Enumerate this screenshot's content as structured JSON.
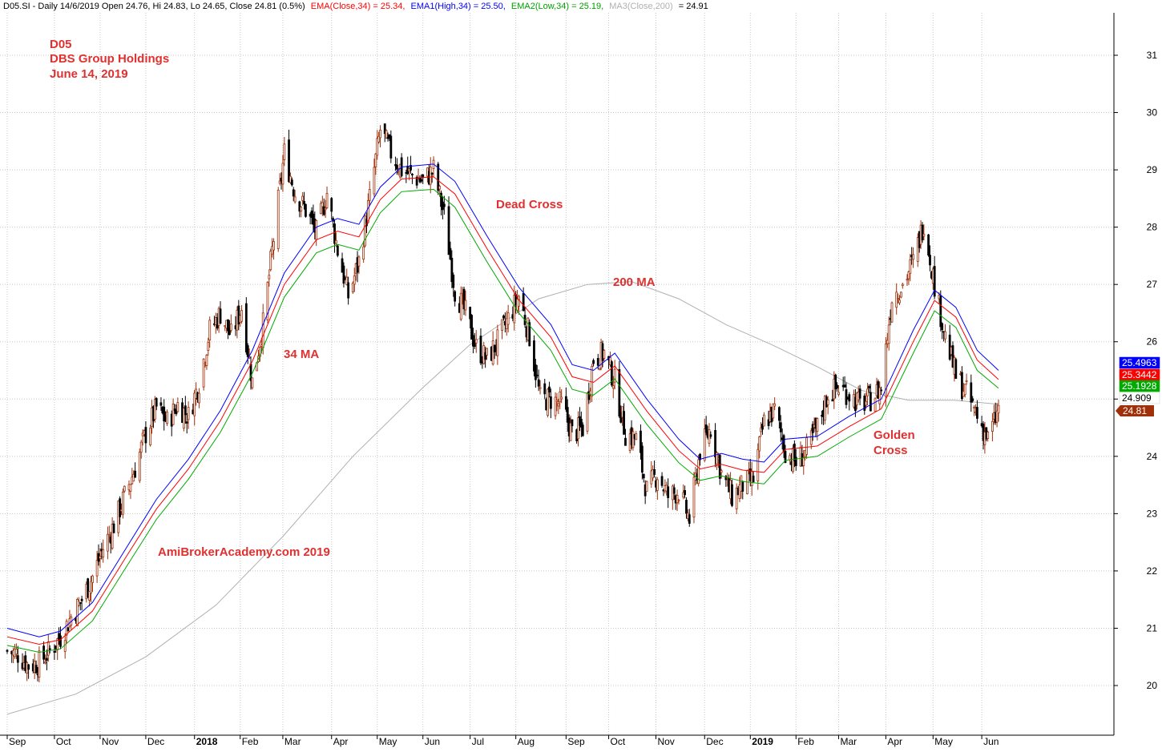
{
  "header": {
    "symbol_line": "D05.SI - Daily 14/6/2019 Open 24.76, Hi 24.83, Lo 24.65, Close 24.81 (0.5%)",
    "ema_close": "EMA(Close,34) = 25.34,",
    "ema_high": "EMA1(High,34) = 25.50,",
    "ema_low": "EMA2(Low,34) = 25.19,",
    "ma200": "MA3(Close,200)",
    "ma200_value": "= 24.91"
  },
  "annotations": {
    "ticker": "D05",
    "company": "DBS Group Holdings",
    "date": "June 14, 2019",
    "dead_cross": "Dead Cross",
    "ma200_label": "200 MA",
    "ma34_label": "34 MA",
    "golden_cross_1": "Golden",
    "golden_cross_2": "Cross",
    "watermark": "AmiBrokerAcademy.com  2019"
  },
  "price_tags": [
    {
      "label": "25.4963",
      "color": "#0000ff"
    },
    {
      "label": "25.3442",
      "color": "#ff0000"
    },
    {
      "label": "25.1928",
      "color": "#00aa00"
    },
    {
      "label": "24.909",
      "color": "#ffffff"
    },
    {
      "label": "24.81",
      "color": "#a0300a"
    }
  ],
  "colors": {
    "up": "#a0300a",
    "down": "#000000",
    "ema_high": "#0000ff",
    "ema_close": "#ff0000",
    "ema_low": "#00aa00",
    "ma200": "#b0b0b0",
    "annotation": "#e03030",
    "grid": "#c8c8c8"
  },
  "chart_data": {
    "type": "candlestick",
    "title": "D05.SI - Daily",
    "ylim": [
      19.3,
      31.8
    ],
    "yticks": [
      20,
      21,
      22,
      23,
      24,
      25,
      26,
      27,
      28,
      29,
      30,
      31
    ],
    "x_range": [
      "2017-09-01",
      "2019-06-21"
    ],
    "month_ticks": [
      {
        "label": "Sep",
        "date": "2017-09-01",
        "bold": false
      },
      {
        "label": "Oct",
        "date": "2017-10-02",
        "bold": false
      },
      {
        "label": "Nov",
        "date": "2017-11-01",
        "bold": false
      },
      {
        "label": "Dec",
        "date": "2017-12-01",
        "bold": false
      },
      {
        "label": "2018",
        "date": "2018-01-02",
        "bold": true
      },
      {
        "label": "Feb",
        "date": "2018-02-01",
        "bold": false
      },
      {
        "label": "Mar",
        "date": "2018-03-01",
        "bold": false
      },
      {
        "label": "Apr",
        "date": "2018-04-02",
        "bold": false
      },
      {
        "label": "May",
        "date": "2018-05-02",
        "bold": false
      },
      {
        "label": "Jun",
        "date": "2018-06-01",
        "bold": false
      },
      {
        "label": "Jul",
        "date": "2018-07-02",
        "bold": false
      },
      {
        "label": "Aug",
        "date": "2018-08-01",
        "bold": false
      },
      {
        "label": "Sep",
        "date": "2018-09-03",
        "bold": false
      },
      {
        "label": "Oct",
        "date": "2018-10-01",
        "bold": false
      },
      {
        "label": "Nov",
        "date": "2018-11-01",
        "bold": false
      },
      {
        "label": "Dec",
        "date": "2018-12-03",
        "bold": false
      },
      {
        "label": "2019",
        "date": "2019-01-02",
        "bold": true
      },
      {
        "label": "Feb",
        "date": "2019-02-01",
        "bold": false
      },
      {
        "label": "Mar",
        "date": "2019-03-01",
        "bold": false
      },
      {
        "label": "Apr",
        "date": "2019-04-01",
        "bold": false
      },
      {
        "label": "May",
        "date": "2019-05-02",
        "bold": false
      },
      {
        "label": "Jun",
        "date": "2019-06-03",
        "bold": false
      }
    ],
    "close_path": [
      [
        "2017-09-01",
        20.6
      ],
      [
        "2017-09-08",
        20.55
      ],
      [
        "2017-09-15",
        20.35
      ],
      [
        "2017-09-22",
        20.4
      ],
      [
        "2017-09-29",
        20.6
      ],
      [
        "2017-10-06",
        20.85
      ],
      [
        "2017-10-13",
        21.2
      ],
      [
        "2017-10-20",
        21.5
      ],
      [
        "2017-10-27",
        21.9
      ],
      [
        "2017-11-03",
        22.4
      ],
      [
        "2017-11-10",
        22.8
      ],
      [
        "2017-11-17",
        23.3
      ],
      [
        "2017-11-24",
        23.8
      ],
      [
        "2017-12-01",
        24.4
      ],
      [
        "2017-12-08",
        24.85
      ],
      [
        "2017-12-15",
        24.6
      ],
      [
        "2017-12-22",
        24.9
      ],
      [
        "2017-12-29",
        24.7
      ],
      [
        "2018-01-05",
        25.3
      ],
      [
        "2018-01-12",
        26.2
      ],
      [
        "2018-01-19",
        26.5
      ],
      [
        "2018-01-26",
        26.1
      ],
      [
        "2018-02-02",
        26.6
      ],
      [
        "2018-02-09",
        25.3
      ],
      [
        "2018-02-16",
        26.3
      ],
      [
        "2018-02-23",
        27.8
      ],
      [
        "2018-03-02",
        29.3
      ],
      [
        "2018-03-09",
        28.6
      ],
      [
        "2018-03-16",
        28.3
      ],
      [
        "2018-03-23",
        27.9
      ],
      [
        "2018-03-30",
        28.6
      ],
      [
        "2018-04-06",
        27.6
      ],
      [
        "2018-04-13",
        26.8
      ],
      [
        "2018-04-20",
        27.4
      ],
      [
        "2018-04-27",
        28.5
      ],
      [
        "2018-05-04",
        29.7
      ],
      [
        "2018-05-11",
        29.3
      ],
      [
        "2018-05-18",
        29.0
      ],
      [
        "2018-05-25",
        28.9
      ],
      [
        "2018-06-01",
        28.8
      ],
      [
        "2018-06-08",
        29.0
      ],
      [
        "2018-06-15",
        28.2
      ],
      [
        "2018-06-22",
        26.9
      ],
      [
        "2018-06-29",
        26.5
      ],
      [
        "2018-07-06",
        25.9
      ],
      [
        "2018-07-13",
        25.7
      ],
      [
        "2018-07-20",
        26.0
      ],
      [
        "2018-07-27",
        26.4
      ],
      [
        "2018-08-03",
        26.8
      ],
      [
        "2018-08-10",
        26.1
      ],
      [
        "2018-08-17",
        25.0
      ],
      [
        "2018-08-24",
        25.0
      ],
      [
        "2018-08-31",
        24.9
      ],
      [
        "2018-09-07",
        24.4
      ],
      [
        "2018-09-14",
        24.5
      ],
      [
        "2018-09-21",
        25.7
      ],
      [
        "2018-09-28",
        25.8
      ],
      [
        "2018-10-05",
        25.3
      ],
      [
        "2018-10-12",
        24.4
      ],
      [
        "2018-10-19",
        24.3
      ],
      [
        "2018-10-26",
        23.4
      ],
      [
        "2018-11-02",
        23.7
      ],
      [
        "2018-11-09",
        23.3
      ],
      [
        "2018-11-16",
        23.4
      ],
      [
        "2018-11-23",
        22.9
      ],
      [
        "2018-11-30",
        24.1
      ],
      [
        "2018-12-07",
        24.5
      ],
      [
        "2018-12-14",
        23.7
      ],
      [
        "2018-12-21",
        23.3
      ],
      [
        "2018-12-28",
        23.5
      ],
      [
        "2019-01-04",
        23.6
      ],
      [
        "2019-01-11",
        24.6
      ],
      [
        "2019-01-18",
        24.8
      ],
      [
        "2019-01-25",
        24.1
      ],
      [
        "2019-02-01",
        23.9
      ],
      [
        "2019-02-08",
        24.1
      ],
      [
        "2019-02-15",
        24.5
      ],
      [
        "2019-02-22",
        25.1
      ],
      [
        "2019-03-01",
        25.2
      ],
      [
        "2019-03-08",
        25.1
      ],
      [
        "2019-03-15",
        24.9
      ],
      [
        "2019-03-22",
        25.0
      ],
      [
        "2019-03-29",
        25.2
      ],
      [
        "2019-04-05",
        26.8
      ],
      [
        "2019-04-12",
        27.0
      ],
      [
        "2019-04-19",
        27.4
      ],
      [
        "2019-04-26",
        28.1
      ],
      [
        "2019-05-03",
        27.0
      ],
      [
        "2019-05-10",
        26.1
      ],
      [
        "2019-05-17",
        25.4
      ],
      [
        "2019-05-24",
        25.1
      ],
      [
        "2019-05-31",
        24.7
      ],
      [
        "2019-06-07",
        24.3
      ],
      [
        "2019-06-14",
        24.81
      ]
    ],
    "ema_high_path": [
      [
        "2017-09-01",
        21.0
      ],
      [
        "2017-09-22",
        20.85
      ],
      [
        "2017-10-06",
        20.95
      ],
      [
        "2017-10-27",
        21.45
      ],
      [
        "2017-11-17",
        22.35
      ],
      [
        "2017-12-08",
        23.25
      ],
      [
        "2017-12-29",
        23.95
      ],
      [
        "2018-01-19",
        24.8
      ],
      [
        "2018-02-09",
        25.85
      ],
      [
        "2018-03-02",
        27.2
      ],
      [
        "2018-03-23",
        28.0
      ],
      [
        "2018-04-06",
        28.15
      ],
      [
        "2018-04-20",
        28.05
      ],
      [
        "2018-05-04",
        28.7
      ],
      [
        "2018-05-18",
        29.05
      ],
      [
        "2018-06-08",
        29.1
      ],
      [
        "2018-06-22",
        28.8
      ],
      [
        "2018-07-13",
        27.85
      ],
      [
        "2018-08-03",
        26.95
      ],
      [
        "2018-08-24",
        26.3
      ],
      [
        "2018-09-07",
        25.6
      ],
      [
        "2018-09-21",
        25.5
      ],
      [
        "2018-10-05",
        25.8
      ],
      [
        "2018-10-26",
        25.0
      ],
      [
        "2018-11-16",
        24.3
      ],
      [
        "2018-11-30",
        23.95
      ],
      [
        "2018-12-14",
        24.05
      ],
      [
        "2018-12-28",
        23.95
      ],
      [
        "2019-01-11",
        23.9
      ],
      [
        "2019-01-25",
        24.3
      ],
      [
        "2019-02-15",
        24.35
      ],
      [
        "2019-03-08",
        24.7
      ],
      [
        "2019-03-29",
        25.0
      ],
      [
        "2019-04-19",
        26.2
      ],
      [
        "2019-05-03",
        26.9
      ],
      [
        "2019-05-17",
        26.6
      ],
      [
        "2019-05-31",
        25.85
      ],
      [
        "2019-06-14",
        25.5
      ]
    ],
    "ema_close_path": [
      [
        "2017-09-01",
        20.85
      ],
      [
        "2017-09-22",
        20.72
      ],
      [
        "2017-10-06",
        20.8
      ],
      [
        "2017-10-27",
        21.3
      ],
      [
        "2017-11-17",
        22.2
      ],
      [
        "2017-12-08",
        23.08
      ],
      [
        "2017-12-29",
        23.78
      ],
      [
        "2018-01-19",
        24.62
      ],
      [
        "2018-02-09",
        25.66
      ],
      [
        "2018-03-02",
        27.0
      ],
      [
        "2018-03-23",
        27.78
      ],
      [
        "2018-04-06",
        27.93
      ],
      [
        "2018-04-20",
        27.83
      ],
      [
        "2018-05-04",
        28.48
      ],
      [
        "2018-05-18",
        28.84
      ],
      [
        "2018-06-08",
        28.88
      ],
      [
        "2018-06-22",
        28.58
      ],
      [
        "2018-07-13",
        27.63
      ],
      [
        "2018-08-03",
        26.73
      ],
      [
        "2018-08-24",
        26.08
      ],
      [
        "2018-09-07",
        25.39
      ],
      [
        "2018-09-21",
        25.29
      ],
      [
        "2018-10-05",
        25.58
      ],
      [
        "2018-10-26",
        24.79
      ],
      [
        "2018-11-16",
        24.1
      ],
      [
        "2018-11-30",
        23.78
      ],
      [
        "2018-12-14",
        23.86
      ],
      [
        "2018-12-28",
        23.76
      ],
      [
        "2019-01-11",
        23.72
      ],
      [
        "2019-01-25",
        24.12
      ],
      [
        "2019-02-15",
        24.18
      ],
      [
        "2019-03-08",
        24.52
      ],
      [
        "2019-03-29",
        24.83
      ],
      [
        "2019-04-19",
        26.0
      ],
      [
        "2019-05-03",
        26.72
      ],
      [
        "2019-05-17",
        26.43
      ],
      [
        "2019-05-31",
        25.68
      ],
      [
        "2019-06-14",
        25.34
      ]
    ],
    "ema_low_path": [
      [
        "2017-09-01",
        20.7
      ],
      [
        "2017-09-22",
        20.58
      ],
      [
        "2017-10-06",
        20.64
      ],
      [
        "2017-10-27",
        21.13
      ],
      [
        "2017-11-17",
        22.02
      ],
      [
        "2017-12-08",
        22.9
      ],
      [
        "2017-12-29",
        23.6
      ],
      [
        "2018-01-19",
        24.42
      ],
      [
        "2018-02-09",
        25.45
      ],
      [
        "2018-03-02",
        26.78
      ],
      [
        "2018-03-23",
        27.55
      ],
      [
        "2018-04-06",
        27.7
      ],
      [
        "2018-04-20",
        27.6
      ],
      [
        "2018-05-04",
        28.25
      ],
      [
        "2018-05-18",
        28.62
      ],
      [
        "2018-06-08",
        28.66
      ],
      [
        "2018-06-22",
        28.35
      ],
      [
        "2018-07-13",
        27.4
      ],
      [
        "2018-08-03",
        26.5
      ],
      [
        "2018-08-24",
        25.85
      ],
      [
        "2018-09-07",
        25.17
      ],
      [
        "2018-09-21",
        25.07
      ],
      [
        "2018-10-05",
        25.35
      ],
      [
        "2018-10-26",
        24.56
      ],
      [
        "2018-11-16",
        23.89
      ],
      [
        "2018-11-30",
        23.58
      ],
      [
        "2018-12-14",
        23.66
      ],
      [
        "2018-12-28",
        23.56
      ],
      [
        "2019-01-11",
        23.52
      ],
      [
        "2019-01-25",
        23.93
      ],
      [
        "2019-02-15",
        24.0
      ],
      [
        "2019-03-08",
        24.34
      ],
      [
        "2019-03-29",
        24.65
      ],
      [
        "2019-04-19",
        25.8
      ],
      [
        "2019-05-03",
        26.54
      ],
      [
        "2019-05-17",
        26.25
      ],
      [
        "2019-05-31",
        25.5
      ],
      [
        "2019-06-14",
        25.19
      ]
    ],
    "ma200_path": [
      [
        "2017-09-01",
        19.5
      ],
      [
        "2017-10-16",
        19.85
      ],
      [
        "2017-12-01",
        20.5
      ],
      [
        "2018-01-16",
        21.4
      ],
      [
        "2018-03-01",
        22.6
      ],
      [
        "2018-04-16",
        24.0
      ],
      [
        "2018-06-01",
        25.2
      ],
      [
        "2018-07-02",
        25.95
      ],
      [
        "2018-08-16",
        26.75
      ],
      [
        "2018-09-17",
        27.0
      ],
      [
        "2018-10-16",
        27.05
      ],
      [
        "2018-11-16",
        26.75
      ],
      [
        "2018-12-17",
        26.3
      ],
      [
        "2019-01-16",
        25.95
      ],
      [
        "2019-02-16",
        25.55
      ],
      [
        "2019-03-16",
        25.15
      ],
      [
        "2019-04-16",
        24.98
      ],
      [
        "2019-05-16",
        24.98
      ],
      [
        "2019-06-14",
        24.91
      ]
    ]
  }
}
